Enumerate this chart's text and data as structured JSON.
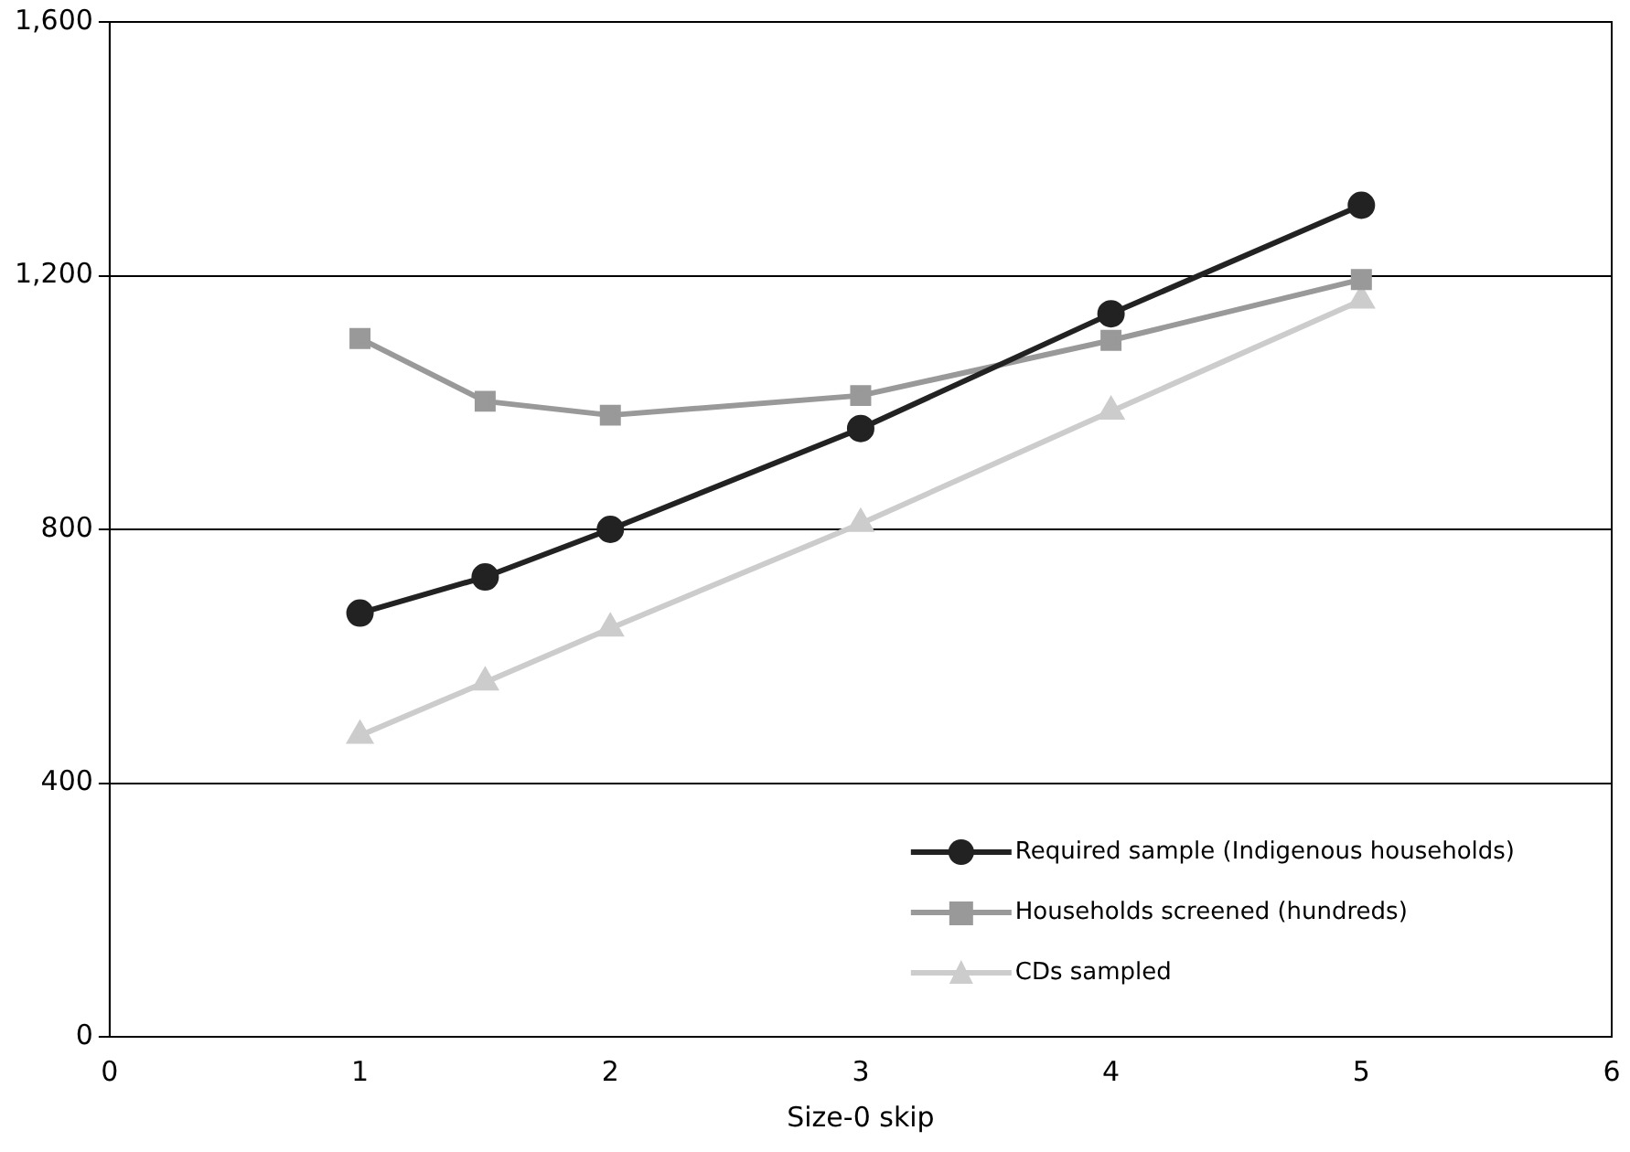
{
  "chart_data": {
    "type": "line",
    "xlabel": "Size-0 skip",
    "x": [
      1,
      1.5,
      2,
      3,
      4,
      5
    ],
    "series": [
      {
        "name": "Required sample (Indigenous households)",
        "color": "#222222",
        "marker": "circle",
        "values": [
          668,
          725,
          800,
          959,
          1140,
          1311
        ]
      },
      {
        "name": "Households screened (hundreds)",
        "color": "#999999",
        "marker": "square",
        "values": [
          1101,
          1002,
          980,
          1011,
          1098,
          1194
        ]
      },
      {
        "name": "CDs sampled",
        "color": "#cccccc",
        "marker": "triangle",
        "values": [
          475,
          559,
          644,
          809,
          986,
          1161
        ]
      }
    ],
    "xlim": [
      0,
      6
    ],
    "xticks": [
      0,
      1,
      2,
      3,
      4,
      5,
      6
    ],
    "ylim": [
      0,
      1600
    ],
    "yticks": [
      0,
      400,
      800,
      {
        "value": 1200,
        "label": "1,200"
      },
      {
        "value": 1600,
        "label": "1,600"
      }
    ],
    "grid": "y",
    "legend": "bottom right",
    "line_style": "solid"
  }
}
